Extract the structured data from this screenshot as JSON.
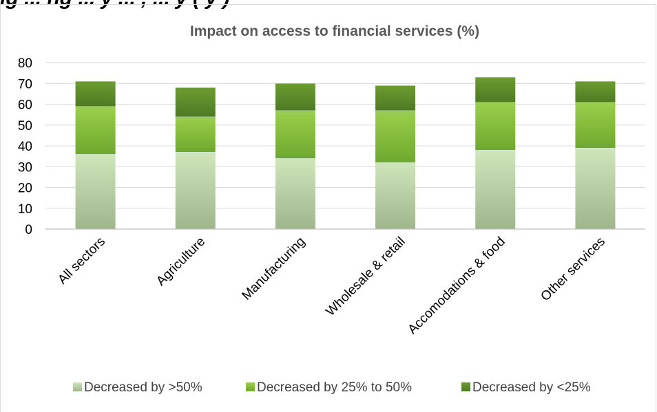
{
  "header_fragment": "ig    ...    ng     ...    y     ...    ,     ...    y (    y    )",
  "chart_data": {
    "type": "bar",
    "stacked": true,
    "title": "Impact on access to financial services (%)",
    "xlabel": "",
    "ylabel": "",
    "ylim": [
      0,
      80
    ],
    "yticks": [
      0,
      10,
      20,
      30,
      40,
      50,
      60,
      70,
      80
    ],
    "grid": true,
    "legend_position": "bottom",
    "categories": [
      "All sectors",
      "Agriculture",
      "Manufacturing",
      "Wholesale & retail",
      "Accomodations & food",
      "Other services"
    ],
    "series": [
      {
        "name": "Decreased by >50%",
        "values": [
          36,
          37,
          34,
          32,
          38,
          39
        ],
        "color": "#b7d3a1"
      },
      {
        "name": "Decreased by 25% to 50%",
        "values": [
          23,
          17,
          23,
          25,
          23,
          22
        ],
        "color": "#8cc43f"
      },
      {
        "name": "Decreased by <25%",
        "values": [
          12,
          14,
          13,
          12,
          12,
          10
        ],
        "color": "#5f8f2b"
      }
    ]
  }
}
